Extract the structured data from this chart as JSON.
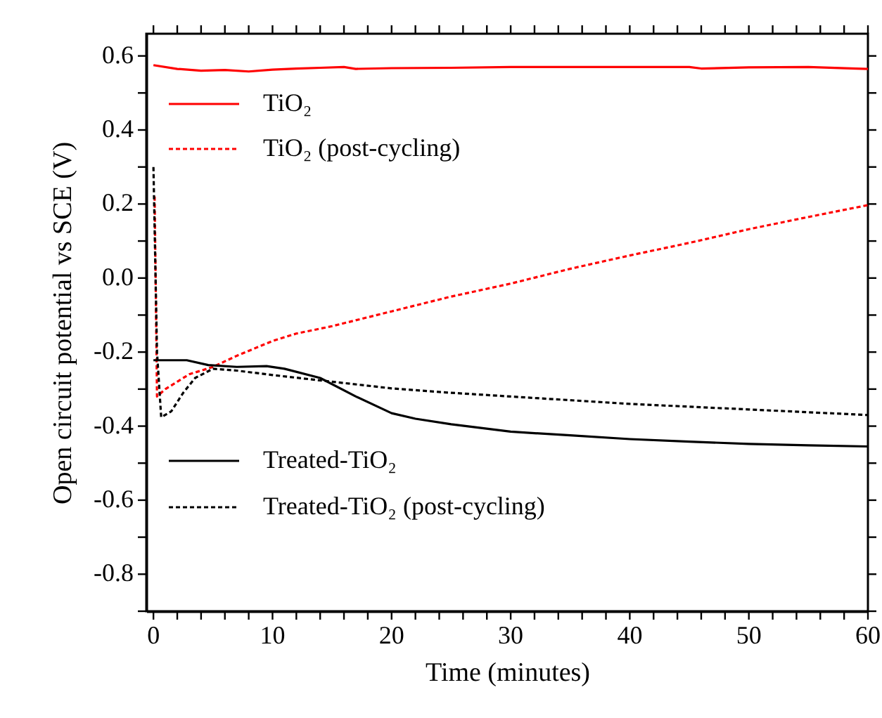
{
  "chart_data": {
    "type": "line",
    "xlabel": "Time (minutes)",
    "ylabel": "Open circuit potential vs SCE (V)",
    "xlim": [
      -0.6,
      60
    ],
    "ylim": [
      -0.9,
      0.66
    ],
    "xticks": [
      0,
      {
        "value": 2,
        "label": null
      },
      {
        "value": 4,
        "label": null
      },
      {
        "value": 6,
        "label": null
      },
      {
        "value": 8,
        "label": null
      },
      10,
      {
        "value": 12,
        "label": null
      },
      {
        "value": 14,
        "label": null
      },
      {
        "value": 16,
        "label": null
      },
      {
        "value": 18,
        "label": null
      },
      20,
      {
        "value": 22,
        "label": null
      },
      {
        "value": 24,
        "label": null
      },
      {
        "value": 26,
        "label": null
      },
      {
        "value": 28,
        "label": null
      },
      30,
      {
        "value": 32,
        "label": null
      },
      {
        "value": 34,
        "label": null
      },
      {
        "value": 36,
        "label": null
      },
      {
        "value": 38,
        "label": null
      },
      40,
      {
        "value": 42,
        "label": null
      },
      {
        "value": 44,
        "label": null
      },
      {
        "value": 46,
        "label": null
      },
      {
        "value": 48,
        "label": null
      },
      50,
      {
        "value": 52,
        "label": null
      },
      {
        "value": 54,
        "label": null
      },
      {
        "value": 56,
        "label": null
      },
      {
        "value": 58,
        "label": null
      },
      60
    ],
    "yticks": [
      {
        "value": -0.9,
        "label": null
      },
      {
        "value": -0.8,
        "label": "-0.8"
      },
      {
        "value": -0.7,
        "label": null
      },
      {
        "value": -0.6,
        "label": "-0.6"
      },
      {
        "value": -0.5,
        "label": null
      },
      {
        "value": -0.4,
        "label": "-0.4"
      },
      {
        "value": -0.3,
        "label": null
      },
      {
        "value": -0.2,
        "label": "-0.2"
      },
      {
        "value": -0.1,
        "label": null
      },
      {
        "value": 0,
        "label": "0.0"
      },
      {
        "value": 0.1,
        "label": null
      },
      {
        "value": 0.2,
        "label": "0.2"
      },
      {
        "value": 0.3,
        "label": null
      },
      {
        "value": 0.4,
        "label": "0.4"
      },
      {
        "value": 0.5,
        "label": null
      },
      {
        "value": 0.6,
        "label": "0.6"
      }
    ],
    "grid": false,
    "legend": "left",
    "marker": "none",
    "series": [
      {
        "name": "TiO₂",
        "color": "#ff0000",
        "line_style": "solid",
        "x": [
          0,
          2,
          4,
          6,
          8,
          10,
          12,
          14,
          16,
          17,
          20,
          25,
          30,
          35,
          40,
          45,
          46,
          50,
          55,
          59,
          60
        ],
        "values": [
          0.575,
          0.565,
          0.56,
          0.562,
          0.558,
          0.563,
          0.566,
          0.568,
          0.57,
          0.565,
          0.567,
          0.568,
          0.57,
          0.57,
          0.57,
          0.57,
          0.566,
          0.569,
          0.57,
          0.566,
          0.565
        ]
      },
      {
        "name": "TiO₂ (post-cycling)",
        "color": "#ff0000",
        "line_style": "dashed",
        "x": [
          0.1,
          0.3,
          1,
          2,
          3,
          5,
          7,
          10,
          12,
          15,
          20,
          25,
          30,
          35,
          40,
          45,
          50,
          55,
          60
        ],
        "values": [
          0.22,
          -0.32,
          -0.3,
          -0.28,
          -0.26,
          -0.24,
          -0.21,
          -0.17,
          -0.15,
          -0.13,
          -0.09,
          -0.05,
          -0.015,
          0.025,
          0.061,
          0.095,
          0.132,
          0.165,
          0.197
        ]
      },
      {
        "name": "Treated-TiO₂",
        "color": "#000000",
        "line_style": "solid",
        "x": [
          0,
          2.8,
          4.6,
          7,
          9.5,
          11,
          14,
          17,
          20,
          22,
          25,
          30,
          35,
          40,
          45,
          50,
          55,
          60
        ],
        "values": [
          -0.222,
          -0.222,
          -0.235,
          -0.24,
          -0.238,
          -0.245,
          -0.27,
          -0.32,
          -0.365,
          -0.38,
          -0.395,
          -0.415,
          -0.425,
          -0.435,
          -0.442,
          -0.448,
          -0.452,
          -0.455
        ]
      },
      {
        "name": "Treated-TiO₂ (post-cycling)",
        "color": "#000000",
        "line_style": "dashed",
        "x": [
          0,
          0.3,
          0.65,
          1.5,
          2.5,
          3.5,
          5,
          7,
          10,
          15,
          20,
          25,
          30,
          40,
          50,
          60
        ],
        "values": [
          0.3,
          -0.2,
          -0.376,
          -0.36,
          -0.31,
          -0.27,
          -0.245,
          -0.25,
          -0.262,
          -0.28,
          -0.298,
          -0.31,
          -0.32,
          -0.34,
          -0.355,
          -0.37
        ]
      }
    ]
  }
}
